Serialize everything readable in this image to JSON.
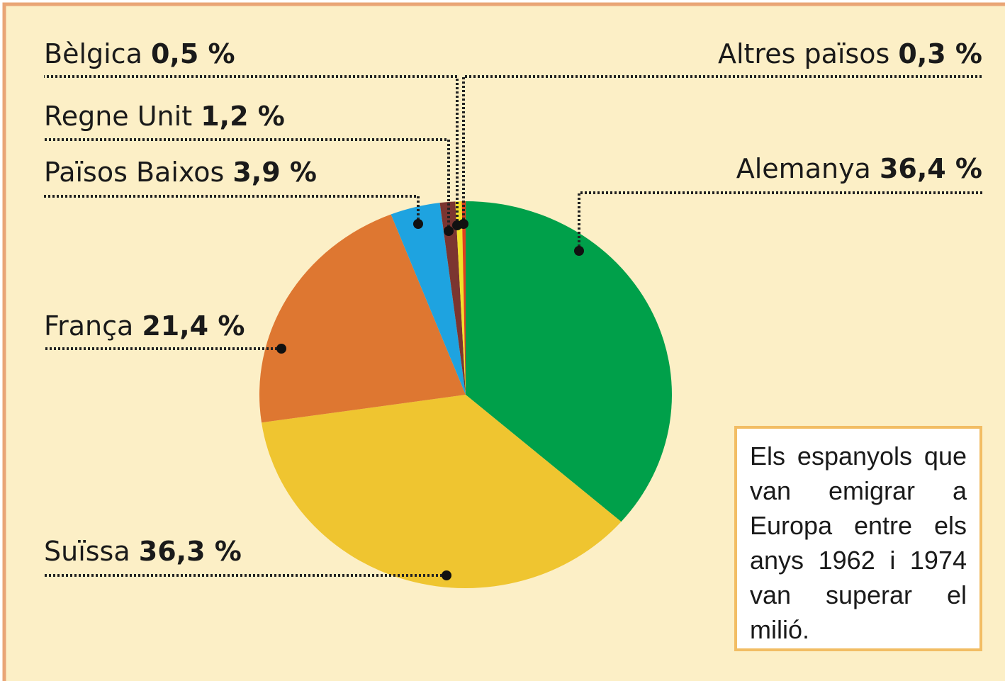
{
  "chart_data": {
    "type": "pie",
    "categories": [
      "Alemanya",
      "Suïssa",
      "França",
      "Països Baixos",
      "Regne Unit",
      "Bèlgica",
      "Altres països"
    ],
    "values": [
      36.4,
      36.3,
      21.4,
      3.9,
      1.2,
      0.5,
      0.3
    ],
    "value_labels": [
      "36,4 %",
      "36,3 %",
      "21,4 %",
      "3,9 %",
      "1,2 %",
      "0,5 %",
      "0,3 %"
    ],
    "colors": [
      "#00a04a",
      "#efc530",
      "#de7731",
      "#1ea3e0",
      "#7b3530",
      "#f3e02a",
      "#e0401e"
    ],
    "annotation": "Els espanyols que van emigrar a Europa entre els anys 1962 i 1974 van superar el milió."
  }
}
